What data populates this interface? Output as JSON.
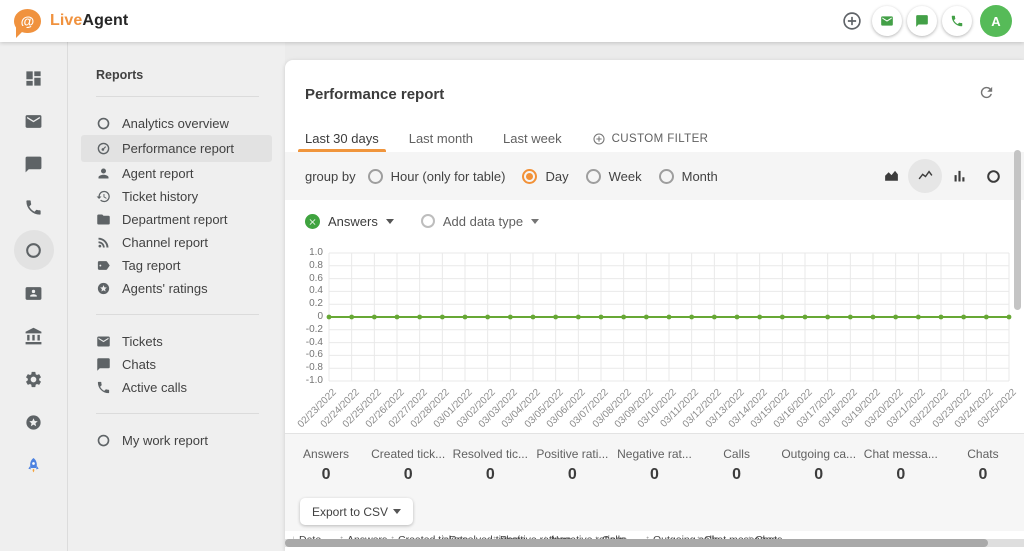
{
  "topbar": {
    "brand_live": "Live",
    "brand_agent": "Agent",
    "actions": [
      {
        "icon": "plus-circle-icon"
      },
      {
        "icon": "envelope-icon"
      },
      {
        "icon": "chat-bubble-icon"
      },
      {
        "icon": "phone-icon"
      }
    ],
    "avatar_letter": "A"
  },
  "icon_rail": {
    "items": [
      {
        "icon": "dashboard-grid-icon",
        "active": false
      },
      {
        "icon": "envelope-icon",
        "active": false
      },
      {
        "icon": "chat-bubble-icon",
        "active": false
      },
      {
        "icon": "phone-icon",
        "active": false
      },
      {
        "icon": "reports-ring-icon",
        "active": true
      },
      {
        "icon": "contact-card-icon",
        "active": false
      },
      {
        "icon": "bank-icon",
        "active": false
      },
      {
        "icon": "gear-icon",
        "active": false
      },
      {
        "icon": "star-circle-icon",
        "active": false
      },
      {
        "icon": "rocket-icon",
        "active": false
      }
    ]
  },
  "sidebar": {
    "title": "Reports",
    "groups": [
      {
        "items": [
          {
            "label": "Analytics overview",
            "icon": "ring-icon",
            "active": false
          },
          {
            "label": "Performance report",
            "icon": "gauge-icon",
            "active": true
          },
          {
            "label": "Agent report",
            "icon": "person-icon",
            "active": false
          },
          {
            "label": "Ticket history",
            "icon": "history-clock-icon",
            "active": false
          },
          {
            "label": "Department report",
            "icon": "folder-icon",
            "active": false
          },
          {
            "label": "Channel report",
            "icon": "rss-icon",
            "active": false
          },
          {
            "label": "Tag report",
            "icon": "tag-icon",
            "active": false
          },
          {
            "label": "Agents' ratings",
            "icon": "star-circle-icon",
            "active": false
          }
        ]
      },
      {
        "items": [
          {
            "label": "Tickets",
            "icon": "envelope-icon",
            "active": false
          },
          {
            "label": "Chats",
            "icon": "chat-bubble-icon",
            "active": false
          },
          {
            "label": "Active calls",
            "icon": "phone-icon",
            "active": false
          }
        ]
      },
      {
        "items": [
          {
            "label": "My work report",
            "icon": "ring-icon",
            "active": false
          }
        ]
      }
    ]
  },
  "report": {
    "title": "Performance report",
    "tabs": [
      {
        "label": "Last 30 days",
        "active": true
      },
      {
        "label": "Last month",
        "active": false
      },
      {
        "label": "Last week",
        "active": false
      },
      {
        "label": "CUSTOM FILTER",
        "active": false,
        "icon": "plus-circle-icon"
      }
    ],
    "group_by_label": "group by",
    "group_by_options": [
      {
        "label": "Hour (only for table)",
        "selected": false
      },
      {
        "label": "Day",
        "selected": true
      },
      {
        "label": "Week",
        "selected": false
      },
      {
        "label": "Month",
        "selected": false
      }
    ],
    "chart_types": [
      {
        "icon": "area-chart-icon",
        "active": false
      },
      {
        "icon": "line-chart-icon",
        "active": true
      },
      {
        "icon": "bar-chart-icon",
        "active": false
      },
      {
        "icon": "donut-chart-icon",
        "active": false
      }
    ],
    "series_chip": "Answers",
    "add_data_type": "Add data type",
    "stats": [
      {
        "label": "Answers",
        "value": "0"
      },
      {
        "label": "Created tick...",
        "value": "0"
      },
      {
        "label": "Resolved tic...",
        "value": "0"
      },
      {
        "label": "Positive rati...",
        "value": "0"
      },
      {
        "label": "Negative rat...",
        "value": "0"
      },
      {
        "label": "Calls",
        "value": "0"
      },
      {
        "label": "Outgoing ca...",
        "value": "0"
      },
      {
        "label": "Chat messa...",
        "value": "0"
      },
      {
        "label": "Chats",
        "value": "0"
      }
    ],
    "export_button": "Export to CSV",
    "table_header": [
      {
        "sort": "↓",
        "label": "Date"
      },
      {
        "sort": "↑",
        "label": "Answers"
      },
      {
        "sort": "↑",
        "label": "Created tickets"
      },
      {
        "sort": "↑",
        "label": "Resolved tickets"
      },
      {
        "sort": "↑",
        "label": "Positive ratings"
      },
      {
        "sort": "↑",
        "label": "Negative ratings"
      },
      {
        "sort": "↑",
        "label": "Calls"
      },
      {
        "sort": "↑",
        "label": "Outgoing calls"
      },
      {
        "sort": "↑",
        "label": "Chat messages"
      },
      {
        "sort": "↑",
        "label": "Chats"
      }
    ]
  },
  "chart_data": {
    "type": "line",
    "categories": [
      "02/23/2022",
      "02/24/2022",
      "02/25/2022",
      "02/26/2022",
      "02/27/2022",
      "02/28/2022",
      "03/01/2022",
      "03/02/2022",
      "03/03/2022",
      "03/04/2022",
      "03/05/2022",
      "03/06/2022",
      "03/07/2022",
      "03/08/2022",
      "03/09/2022",
      "03/10/2022",
      "03/11/2022",
      "03/12/2022",
      "03/13/2022",
      "03/14/2022",
      "03/15/2022",
      "03/16/2022",
      "03/17/2022",
      "03/18/2022",
      "03/19/2022",
      "03/20/2022",
      "03/21/2022",
      "03/22/2022",
      "03/23/2022",
      "03/24/2022",
      "03/25/2022"
    ],
    "series": [
      {
        "name": "Answers",
        "color": "#67A835",
        "values": [
          0,
          0,
          0,
          0,
          0,
          0,
          0,
          0,
          0,
          0,
          0,
          0,
          0,
          0,
          0,
          0,
          0,
          0,
          0,
          0,
          0,
          0,
          0,
          0,
          0,
          0,
          0,
          0,
          0,
          0,
          0
        ]
      }
    ],
    "ylim": [
      -1.0,
      1.0
    ],
    "yticks": [
      "1.0",
      "0.8",
      "0.6",
      "0.4",
      "0.2",
      "0",
      "-0.2",
      "-0.4",
      "-0.6",
      "-0.8",
      "-1.0"
    ],
    "grid": true,
    "legend_position": "top-left"
  },
  "colors": {
    "accent_orange": "#F0953C",
    "action_green": "#43A047",
    "avatar_green": "#56BB58",
    "chart_green": "#67A835",
    "sidebar_bg": "#EFEFEF",
    "selected_row": "#E2E2E2"
  }
}
